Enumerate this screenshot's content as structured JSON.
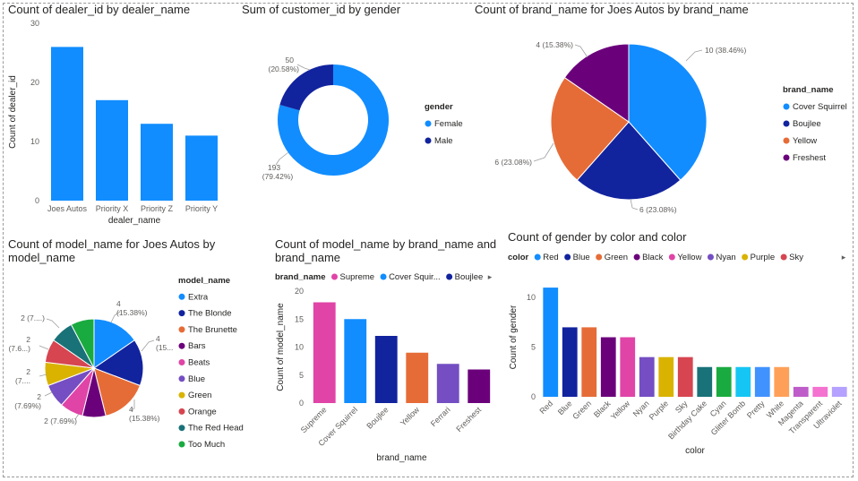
{
  "chart_data": [
    {
      "id": "c1",
      "type": "bar",
      "title": "Count of dealer_id by dealer_name",
      "xlabel": "dealer_name",
      "ylabel": "Count of dealer_id",
      "categories": [
        "Joes Autos",
        "Priority X",
        "Priority Z",
        "Priority Y"
      ],
      "values": [
        26,
        17,
        13,
        11
      ],
      "yticks": [
        0,
        10,
        20,
        30
      ],
      "ylim": [
        0,
        30
      ],
      "color": "#118DFF",
      "grid": false
    },
    {
      "id": "c2",
      "type": "pie",
      "subtype": "donut",
      "title": "Sum of customer_id by gender",
      "legend_title": "gender",
      "legend_position": "right",
      "slices": [
        {
          "name": "Female",
          "value": 193,
          "label_value": "193",
          "label_pct": "(79.42%)",
          "color": "#118DFF"
        },
        {
          "name": "Male",
          "value": 50,
          "label_value": "50",
          "label_pct": "(20.58%)",
          "color": "#12239E"
        }
      ]
    },
    {
      "id": "c3",
      "type": "pie",
      "title": "Count of brand_name for Joes Autos by brand_name",
      "legend_title": "brand_name",
      "legend_position": "right",
      "slices": [
        {
          "name": "Cover Squirrel",
          "value": 10,
          "label": "10 (38.46%)",
          "color": "#118DFF"
        },
        {
          "name": "Boujlee",
          "value": 6,
          "label": "6 (23.08%)",
          "color": "#12239E"
        },
        {
          "name": "Yellow",
          "value": 6,
          "label": "6 (23.08%)",
          "color": "#E66C37"
        },
        {
          "name": "Freshest",
          "value": 4,
          "label": "4 (15.38%)",
          "color": "#6B007B"
        }
      ]
    },
    {
      "id": "c4",
      "type": "pie",
      "title_lines": [
        "Count of model_name for Joes Autos by",
        "model_name"
      ],
      "legend_title": "model_name",
      "legend_position": "right",
      "slices": [
        {
          "name": "Extra",
          "value": 4,
          "label_lines": [
            "4",
            "(15.38%)"
          ],
          "color": "#118DFF"
        },
        {
          "name": "The Blonde",
          "value": 4,
          "label_lines": [
            "4",
            "(15..."
          ],
          "color": "#12239E"
        },
        {
          "name": "The Brunette",
          "value": 4,
          "label_lines": [
            "4",
            "(15.38%)"
          ],
          "color": "#E66C37"
        },
        {
          "name": "Bars",
          "value": 2,
          "label_lines": [
            "2 (7.69%)"
          ],
          "color": "#6B007B"
        },
        {
          "name": "Beats",
          "value": 2,
          "label_lines": [
            "2",
            "(7.69%)"
          ],
          "color": "#E044A7"
        },
        {
          "name": "Blue",
          "value": 2,
          "label_lines": [
            "2",
            "(7...."
          ],
          "color": "#744EC2"
        },
        {
          "name": "Green",
          "value": 2,
          "label_lines": [
            "2",
            "(7.6...)"
          ],
          "color": "#D9B300"
        },
        {
          "name": "Orange",
          "value": 2,
          "label_lines": [
            "2 (7....)"
          ],
          "color": "#D64550"
        },
        {
          "name": "The Red Head",
          "value": 2,
          "label_lines": [],
          "color": "#197278"
        },
        {
          "name": "Too Much",
          "value": 2,
          "label_lines": [],
          "color": "#1AAB40"
        }
      ]
    },
    {
      "id": "c5",
      "type": "bar",
      "title_lines": [
        "Count of model_name by brand_name and",
        "brand_name"
      ],
      "xlabel": "brand_name",
      "ylabel": "Count of model_name",
      "legend_title": "brand_name",
      "legend_position": "top-left",
      "legend_items": [
        {
          "name": "Supreme",
          "color": "#E044A7"
        },
        {
          "name": "Cover Squir...",
          "color": "#118DFF"
        },
        {
          "name": "Boujlee",
          "color": "#12239E"
        }
      ],
      "categories": [
        "Supreme",
        "Cover Squirrel",
        "Boujlee",
        "Yellow",
        "Ferrari",
        "Freshest"
      ],
      "values": [
        18,
        15,
        12,
        9,
        7,
        6
      ],
      "colors": [
        "#E044A7",
        "#118DFF",
        "#12239E",
        "#E66C37",
        "#744EC2",
        "#6B007B"
      ],
      "yticks": [
        0,
        5,
        10,
        15,
        20
      ],
      "ylim": [
        0,
        20
      ],
      "grid": false
    },
    {
      "id": "c6",
      "type": "bar",
      "title": "Count of gender by color and color",
      "xlabel": "color",
      "ylabel": "Count of gender",
      "legend_title": "color",
      "legend_position": "top-left",
      "legend_items": [
        {
          "name": "Red",
          "color": "#118DFF"
        },
        {
          "name": "Blue",
          "color": "#12239E"
        },
        {
          "name": "Green",
          "color": "#E66C37"
        },
        {
          "name": "Black",
          "color": "#6B007B"
        },
        {
          "name": "Yellow",
          "color": "#E044A7"
        },
        {
          "name": "Nyan",
          "color": "#744EC2"
        },
        {
          "name": "Purple",
          "color": "#D9B300"
        },
        {
          "name": "Sky",
          "color": "#D64550"
        }
      ],
      "categories": [
        "Red",
        "Blue",
        "Green",
        "Black",
        "Yellow",
        "Nyan",
        "Purple",
        "Sky",
        "Birthday Cake",
        "Cyan",
        "Glitter Bomb",
        "Pretty",
        "White",
        "Magenta",
        "Transparent",
        "Ultraviolet"
      ],
      "values": [
        11,
        7,
        7,
        6,
        6,
        4,
        4,
        4,
        3,
        3,
        3,
        3,
        3,
        1,
        1,
        1
      ],
      "colors": [
        "#118DFF",
        "#12239E",
        "#E66C37",
        "#6B007B",
        "#E044A7",
        "#744EC2",
        "#D9B300",
        "#D64550",
        "#197278",
        "#1AAB40",
        "#15C6F4",
        "#4092FF",
        "#FFA058",
        "#BE5DC9",
        "#F472D0",
        "#B5A1FF"
      ],
      "yticks": [
        0,
        5,
        10
      ],
      "ylim": [
        0,
        12
      ],
      "grid": false
    }
  ],
  "ui": {
    "more_arrow": "▸"
  }
}
